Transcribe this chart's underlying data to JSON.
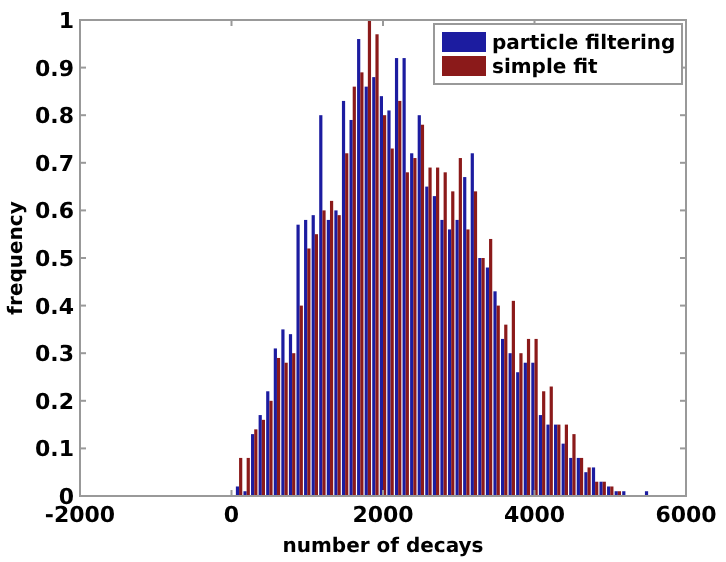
{
  "chart_data": {
    "type": "bar",
    "xlabel": "number of decays",
    "ylabel": "frequency",
    "x": [
      100,
      200,
      300,
      400,
      500,
      600,
      700,
      800,
      900,
      1000,
      1100,
      1200,
      1300,
      1400,
      1500,
      1600,
      1700,
      1800,
      1900,
      2000,
      2100,
      2200,
      2300,
      2400,
      2500,
      2600,
      2700,
      2800,
      2900,
      3000,
      3100,
      3200,
      3300,
      3400,
      3500,
      3600,
      3700,
      3800,
      3900,
      4000,
      4100,
      4200,
      4300,
      4400,
      4500,
      4600,
      4700,
      4800,
      4900,
      5000,
      5100,
      5200,
      5500
    ],
    "series": [
      {
        "name": "particle filtering",
        "color": "#1c1ca0",
        "values": [
          0.02,
          0.01,
          0.13,
          0.17,
          0.22,
          0.31,
          0.35,
          0.34,
          0.57,
          0.58,
          0.59,
          0.8,
          0.58,
          0.6,
          0.83,
          0.79,
          0.96,
          0.86,
          0.88,
          0.84,
          0.81,
          0.92,
          0.92,
          0.72,
          0.8,
          0.65,
          0.63,
          0.58,
          0.56,
          0.58,
          0.67,
          0.72,
          0.5,
          0.48,
          0.43,
          0.33,
          0.3,
          0.26,
          0.28,
          0.28,
          0.17,
          0.15,
          0.15,
          0.11,
          0.08,
          0.08,
          0.05,
          0.06,
          0.03,
          0.02,
          0.01,
          0.01,
          0.01
        ]
      },
      {
        "name": "simple fit",
        "color": "#8b1a1a",
        "values": [
          0.08,
          0.08,
          0.14,
          0.16,
          0.2,
          0.29,
          0.28,
          0.3,
          0.4,
          0.52,
          0.55,
          0.6,
          0.62,
          0.59,
          0.72,
          0.86,
          0.89,
          1.0,
          0.97,
          0.8,
          0.73,
          0.83,
          0.68,
          0.71,
          0.78,
          0.69,
          0.69,
          0.68,
          0.64,
          0.71,
          0.56,
          0.64,
          0.5,
          0.54,
          0.4,
          0.36,
          0.41,
          0.3,
          0.33,
          0.33,
          0.22,
          0.23,
          0.15,
          0.15,
          0.13,
          0.08,
          0.06,
          0.03,
          0.03,
          0.02,
          0.01,
          null,
          null
        ]
      }
    ],
    "xlim": [
      -2000,
      6000
    ],
    "xticks": [
      -2000,
      0,
      2000,
      4000,
      6000
    ],
    "ylim": [
      0,
      1
    ],
    "yticks": [
      0,
      0.1,
      0.2,
      0.3,
      0.4,
      0.5,
      0.6,
      0.7,
      0.8,
      0.9,
      1
    ],
    "legend": "top right",
    "grid": false
  }
}
